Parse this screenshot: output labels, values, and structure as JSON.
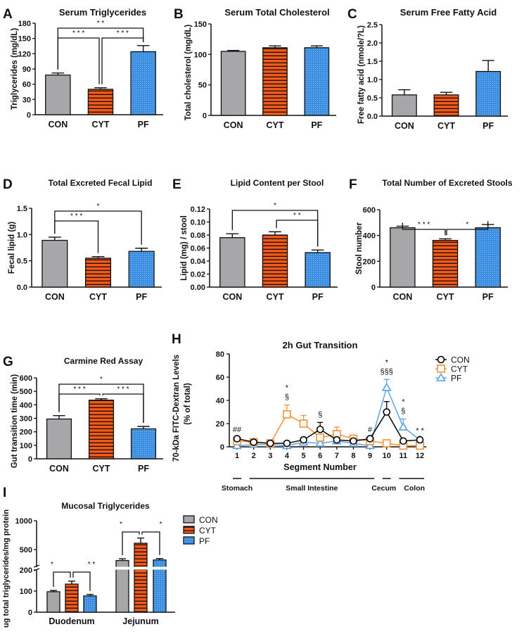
{
  "colors": {
    "CON": "#a7a7aa",
    "CYT": "#f05a1a",
    "PF": "#3a8ee2",
    "line_CON": "#000000",
    "line_CYT": "#f39237",
    "line_PF": "#5aa3e6"
  },
  "chart_data": [
    {
      "panel": "A",
      "type": "bar",
      "title": "Serum Triglycerides",
      "ylabel": "Triglycerides (mg/dL)",
      "ylim": [
        0,
        180
      ],
      "ticks": [
        0,
        30,
        60,
        90,
        120,
        150,
        180
      ],
      "tick_labels": [
        "0",
        "30",
        "60",
        "90",
        "120",
        "150",
        "180"
      ],
      "categories": [
        "CON",
        "CYT",
        "PF"
      ],
      "values": [
        78,
        50,
        124
      ],
      "errors": [
        4,
        3,
        12
      ],
      "significance": [
        {
          "from": "CON",
          "to": "PF",
          "label": "* *"
        },
        {
          "from": "CON",
          "to": "CYT",
          "label": "* * *"
        },
        {
          "from": "CYT",
          "to": "PF",
          "label": "* * *"
        }
      ]
    },
    {
      "panel": "B",
      "type": "bar",
      "title": "Serum Total Cholesterol",
      "ylabel": "Total cholesterol (mg/dL)",
      "ylim": [
        0,
        150
      ],
      "ticks": [
        0,
        50,
        100,
        150
      ],
      "tick_labels": [
        "0",
        "50",
        "100",
        "150"
      ],
      "categories": [
        "CON",
        "CYT",
        "PF"
      ],
      "values": [
        105,
        111,
        111
      ],
      "errors": [
        1.5,
        3,
        3
      ],
      "significance": []
    },
    {
      "panel": "C",
      "type": "bar",
      "title": "Serum Free Fatty Acid",
      "ylabel": "Free fatty acid (nmole/?L)",
      "ylim": [
        0,
        2.5
      ],
      "ticks": [
        0,
        0.5,
        1,
        1.5,
        2,
        2.5
      ],
      "tick_labels": [
        "0.0",
        "0.5",
        "1.0",
        "1.5",
        "2.0",
        "2.5"
      ],
      "categories": [
        "CON",
        "CYT",
        "PF"
      ],
      "values": [
        0.58,
        0.58,
        1.22
      ],
      "errors": [
        0.14,
        0.07,
        0.3
      ],
      "significance": []
    },
    {
      "panel": "D",
      "type": "bar",
      "title": "Total Excreted Fecal Lipid",
      "ylabel": "Fecal lipid (g)",
      "ylim": [
        0,
        1.5
      ],
      "ticks": [
        0,
        0.5,
        1,
        1.5
      ],
      "tick_labels": [
        "0.0",
        "0.5",
        "1.0",
        "1.5"
      ],
      "categories": [
        "CON",
        "CYT",
        "PF"
      ],
      "values": [
        0.89,
        0.55,
        0.68
      ],
      "errors": [
        0.06,
        0.03,
        0.06
      ],
      "significance": [
        {
          "from": "CON",
          "to": "PF",
          "label": "*"
        },
        {
          "from": "CON",
          "to": "CYT",
          "label": "* * *"
        }
      ]
    },
    {
      "panel": "E",
      "type": "bar",
      "title": "Lipid Content per Stool",
      "ylabel": "Lipid (mg) / stool",
      "ylim": [
        0,
        0.12
      ],
      "ticks": [
        0,
        0.02,
        0.04,
        0.06,
        0.08,
        0.1,
        0.12
      ],
      "tick_labels": [
        "0.00",
        "0.02",
        "0.04",
        "0.06",
        "0.08",
        "0.10",
        "0.12"
      ],
      "categories": [
        "CON",
        "CYT",
        "PF"
      ],
      "values": [
        0.076,
        0.08,
        0.053
      ],
      "errors": [
        0.006,
        0.005,
        0.004
      ],
      "significance": [
        {
          "from": "CON",
          "to": "PF",
          "label": "*"
        },
        {
          "from": "CYT",
          "to": "PF",
          "label": "* *"
        }
      ]
    },
    {
      "panel": "F",
      "type": "bar",
      "title": "Total Number of Excreted Stools",
      "ylabel": "Stool number",
      "ylim": [
        0,
        600
      ],
      "ticks": [
        0,
        200,
        400,
        600
      ],
      "tick_labels": [
        "0",
        "200",
        "400",
        "600"
      ],
      "categories": [
        "CON",
        "CYT",
        "PF"
      ],
      "values": [
        460,
        362,
        460
      ],
      "errors": [
        12,
        12,
        25
      ],
      "significance": [
        {
          "from": "CON",
          "to": "CYT",
          "label": "* * *"
        },
        {
          "from": "CYT",
          "to": "PF",
          "label": "*"
        }
      ]
    },
    {
      "panel": "G",
      "type": "bar",
      "title": "Carmine Red Assay",
      "ylabel": "Gut transition time (min)",
      "ylim": [
        0,
        600
      ],
      "ticks": [
        0,
        100,
        200,
        300,
        400,
        500,
        600
      ],
      "tick_labels": [
        "0",
        "100",
        "200",
        "300",
        "400",
        "500",
        "600"
      ],
      "categories": [
        "CON",
        "CYT",
        "PF"
      ],
      "values": [
        295,
        435,
        222
      ],
      "errors": [
        25,
        10,
        18
      ],
      "significance": [
        {
          "from": "CON",
          "to": "PF",
          "label": "*"
        },
        {
          "from": "CON",
          "to": "CYT",
          "label": "* * *"
        },
        {
          "from": "CYT",
          "to": "PF",
          "label": "* * *"
        }
      ]
    },
    {
      "panel": "H",
      "type": "line",
      "title": "2h Gut Transition",
      "ylabel": [
        "70-kDa FITC-Dextran Levels",
        "(% of total)"
      ],
      "xlabel": "Segment Number",
      "ylim": [
        0,
        80
      ],
      "ticks": [
        0,
        20,
        40,
        60,
        80
      ],
      "tick_labels": [
        "0",
        "20",
        "40",
        "60",
        "80"
      ],
      "x": [
        1,
        2,
        3,
        4,
        5,
        6,
        7,
        8,
        9,
        10,
        11,
        12
      ],
      "x_labels": [
        "1",
        "2",
        "3",
        "4",
        "5",
        "6",
        "7",
        "8",
        "9",
        "10",
        "11",
        "12"
      ],
      "series": [
        {
          "name": "CON",
          "marker": "circle",
          "values": [
            7,
            4,
            3,
            3,
            6,
            15,
            6,
            5,
            7,
            30,
            5,
            6
          ],
          "errors": [
            1,
            1,
            1,
            1,
            1,
            6,
            1,
            1,
            1,
            9,
            1,
            1
          ]
        },
        {
          "name": "CYT",
          "marker": "square",
          "values": [
            5,
            4,
            3,
            28,
            20,
            8,
            11,
            7,
            5,
            3,
            1,
            1
          ],
          "errors": [
            1,
            1,
            1,
            8,
            7,
            1,
            6,
            2,
            1,
            1,
            0.5,
            0.5
          ]
        },
        {
          "name": "PF",
          "marker": "triangle",
          "values": [
            1,
            2,
            2,
            1,
            4,
            3,
            5,
            3,
            1,
            51,
            17,
            6
          ],
          "errors": [
            0.5,
            0.5,
            0.5,
            0.5,
            1,
            1,
            1,
            1,
            0.5,
            7,
            7,
            1
          ]
        }
      ],
      "annotations": [
        {
          "x": 1,
          "lines": [
            "##"
          ]
        },
        {
          "x": 4,
          "lines": [
            "*",
            "§"
          ]
        },
        {
          "x": 6,
          "lines": [
            "§"
          ]
        },
        {
          "x": 9,
          "lines": [
            "#"
          ]
        },
        {
          "x": 10,
          "lines": [
            "*",
            "§§§"
          ]
        },
        {
          "x": 11,
          "lines": [
            "*",
            "§"
          ]
        },
        {
          "x": 12,
          "lines": [
            "* *"
          ]
        }
      ],
      "regions": [
        {
          "label": "Stomach",
          "from": 1,
          "to": 1
        },
        {
          "label": "Small Intestine",
          "from": 2,
          "to": 9
        },
        {
          "label": "Cecum",
          "from": 10,
          "to": 10
        },
        {
          "label": "Colon",
          "from": 11,
          "to": 12
        }
      ],
      "legend": "right"
    },
    {
      "panel": "I",
      "type": "bar",
      "title": "Mucosal Triglycerides",
      "ylabel": "ug total triglycerides/mg protein",
      "axis_break": [
        200,
        200
      ],
      "ylim": [
        0,
        1000
      ],
      "ticks": [
        0,
        100,
        200,
        500,
        1000
      ],
      "tick_labels": [
        "0",
        "100",
        "200",
        "500",
        "1000"
      ],
      "categories": [
        "Duodenum",
        "Jejunum"
      ],
      "series": [
        {
          "name": "CON",
          "values": [
            97,
            310
          ],
          "errors": [
            6,
            30
          ]
        },
        {
          "name": "CYT",
          "values": [
            133,
            610
          ],
          "errors": [
            14,
            90
          ]
        },
        {
          "name": "PF",
          "values": [
            77,
            320
          ],
          "errors": [
            7,
            25
          ]
        }
      ],
      "significance": [
        {
          "group": "Duodenum",
          "from": "CON",
          "to": "CYT",
          "label": "*"
        },
        {
          "group": "Duodenum",
          "from": "CYT",
          "to": "PF",
          "label": "* *"
        },
        {
          "group": "Jejunum",
          "from": "CON",
          "to": "CYT",
          "label": "*"
        },
        {
          "group": "Jejunum",
          "from": "CYT",
          "to": "PF",
          "label": "*"
        }
      ],
      "legend": "right"
    }
  ]
}
